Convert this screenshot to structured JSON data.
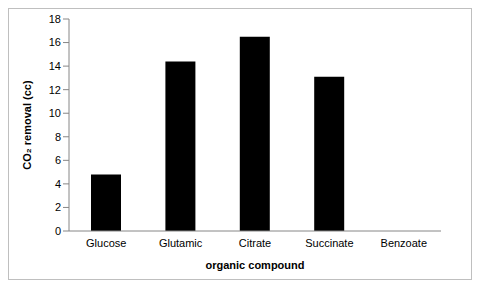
{
  "chart_data": {
    "type": "bar",
    "x_label": "organic compound",
    "y_label": "CO₂ removal (cc)",
    "categories": [
      "Glucose",
      "Glutamic",
      "Citrate",
      "Succinate",
      "Benzoate"
    ],
    "values": [
      4.8,
      14.4,
      16.5,
      13.1,
      0
    ],
    "color": "#000000",
    "ylim": [
      0,
      18
    ],
    "yticks": [
      0,
      2,
      4,
      6,
      8,
      10,
      12,
      14,
      16,
      18
    ],
    "grid": false
  }
}
